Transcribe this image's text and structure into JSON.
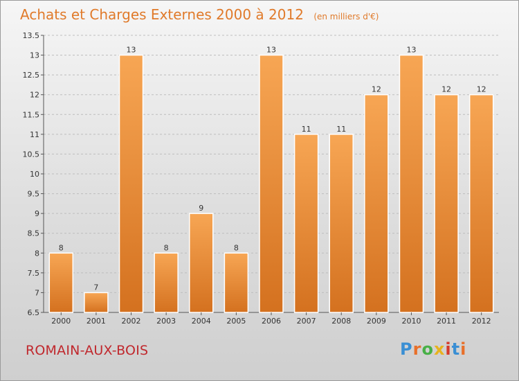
{
  "header": {
    "title": "Achats et Charges Externes 2000 à 2012",
    "unit": "(en milliers d'€)"
  },
  "footer": {
    "commune": "ROMAIN-AUX-BOIS",
    "logo": "Proxiti"
  },
  "colors": {
    "bar_light": "#f7a654",
    "bar_dark": "#d4711f",
    "title": "#e07a2a",
    "commune": "#c0282d",
    "logo_letters": [
      "#3a8fd4",
      "#e8702a",
      "#48b047",
      "#e8b21e",
      "#d63a2a",
      "#3a8fd4",
      "#e8702a"
    ]
  },
  "chart_data": {
    "type": "bar",
    "title": "Achats et Charges Externes 2000 à 2012",
    "subtitle": "(en milliers d'€)",
    "xlabel": "",
    "ylabel": "",
    "categories": [
      "2000",
      "2001",
      "2002",
      "2003",
      "2004",
      "2005",
      "2006",
      "2007",
      "2008",
      "2009",
      "2010",
      "2011",
      "2012"
    ],
    "values": [
      8,
      7,
      13,
      8,
      9,
      8,
      13,
      11,
      11,
      12,
      13,
      12,
      12
    ],
    "labels": [
      "8",
      "7",
      "13",
      "8",
      "9",
      "8",
      "13",
      "11",
      "11",
      "12",
      "13",
      "12",
      "12"
    ],
    "ylim": [
      6.5,
      13.5
    ],
    "yticks": [
      6.5,
      7,
      7.5,
      8,
      8.5,
      9,
      9.5,
      10,
      10.5,
      11,
      11.5,
      12,
      12.5,
      13,
      13.5
    ],
    "ytick_labels": [
      "6.5",
      "7",
      "7.5",
      "8",
      "8.5",
      "9",
      "9.5",
      "10",
      "10.5",
      "11",
      "11.5",
      "12",
      "12.5",
      "13",
      "13.5"
    ],
    "grid": true,
    "legend": "none"
  }
}
